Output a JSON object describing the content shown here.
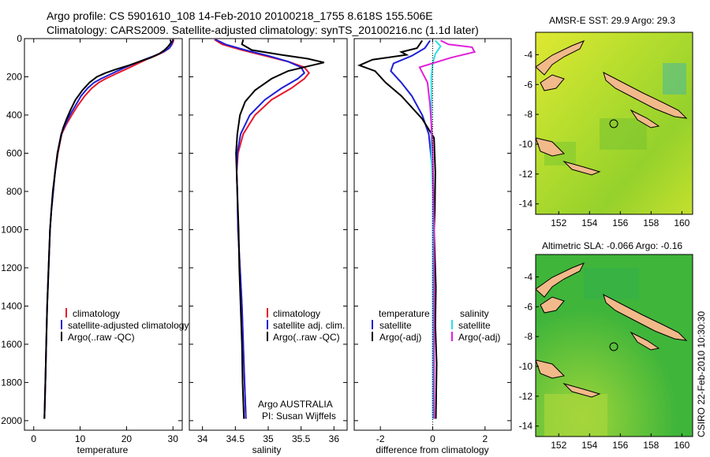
{
  "header": {
    "title_line1": "Argo profile: CS 5901610_108 14-Feb-2010 20100218_1755 8.618S 155.506E",
    "title_line2": "Climatology: CARS2009. Satellite-adjusted climatology: synTS_20100216.nc (1.1d later)"
  },
  "side_label": "CSIRO 22-Feb-2010 10:30:30",
  "colors": {
    "climatology": "#e8192c",
    "satellite": "#1f1fd6",
    "argo": "#000000",
    "sal_satellite": "#29e0e6",
    "sal_argo": "#e020d8"
  },
  "chart_data": [
    {
      "id": "temperature",
      "type": "line",
      "xlabel": "temperature",
      "ylabel": "",
      "xlim": [
        -2,
        32
      ],
      "ylim": [
        2050,
        0
      ],
      "xticks": [
        0,
        10,
        20,
        30
      ],
      "yticks": [
        0,
        200,
        400,
        600,
        800,
        1000,
        1200,
        1400,
        1600,
        1800,
        2000
      ],
      "legend": [
        "climatology",
        "satellite-adjusted climatology",
        "Argo(..raw -QC)"
      ],
      "series": [
        {
          "name": "climatology",
          "color": "#e8192c",
          "points": [
            [
              30.2,
              5
            ],
            [
              29.8,
              30
            ],
            [
              29.2,
              50
            ],
            [
              28.0,
              70
            ],
            [
              26.2,
              90
            ],
            [
              24.2,
              110
            ],
            [
              22.5,
              130
            ],
            [
              20.8,
              150
            ],
            [
              19.0,
              170
            ],
            [
              17.2,
              190
            ],
            [
              15.5,
              210
            ],
            [
              14.0,
              230
            ],
            [
              12.5,
              260
            ],
            [
              11.0,
              300
            ],
            [
              9.5,
              350
            ],
            [
              8.2,
              400
            ],
            [
              7.0,
              450
            ],
            [
              6.0,
              500
            ],
            [
              5.2,
              600
            ],
            [
              4.6,
              700
            ],
            [
              4.2,
              800
            ],
            [
              3.8,
              900
            ],
            [
              3.5,
              1000
            ],
            [
              3.2,
              1200
            ],
            [
              2.9,
              1400
            ],
            [
              2.7,
              1600
            ],
            [
              2.5,
              1800
            ],
            [
              2.3,
              1990
            ]
          ]
        },
        {
          "name": "satellite-adjusted climatology",
          "color": "#1f1fd6",
          "points": [
            [
              30.0,
              5
            ],
            [
              29.7,
              30
            ],
            [
              29.2,
              50
            ],
            [
              27.8,
              70
            ],
            [
              26.0,
              90
            ],
            [
              23.8,
              110
            ],
            [
              21.8,
              130
            ],
            [
              19.8,
              150
            ],
            [
              18.0,
              170
            ],
            [
              16.2,
              190
            ],
            [
              14.5,
              210
            ],
            [
              13.0,
              230
            ],
            [
              11.6,
              260
            ],
            [
              10.2,
              300
            ],
            [
              9.0,
              350
            ],
            [
              7.8,
              400
            ],
            [
              6.8,
              450
            ],
            [
              5.9,
              500
            ],
            [
              5.1,
              600
            ],
            [
              4.6,
              700
            ],
            [
              4.2,
              800
            ],
            [
              3.8,
              900
            ],
            [
              3.5,
              1000
            ],
            [
              3.2,
              1200
            ],
            [
              2.9,
              1400
            ],
            [
              2.7,
              1600
            ],
            [
              2.5,
              1800
            ],
            [
              2.3,
              1990
            ]
          ]
        },
        {
          "name": "Argo(..raw -QC)",
          "color": "#000000",
          "points": [
            [
              29.4,
              5
            ],
            [
              29.6,
              20
            ],
            [
              29.0,
              40
            ],
            [
              28.2,
              60
            ],
            [
              27.0,
              80
            ],
            [
              25.2,
              100
            ],
            [
              22.8,
              120
            ],
            [
              20.5,
              140
            ],
            [
              17.8,
              160
            ],
            [
              15.5,
              180
            ],
            [
              13.6,
              200
            ],
            [
              12.0,
              230
            ],
            [
              10.5,
              270
            ],
            [
              9.0,
              320
            ],
            [
              8.0,
              370
            ],
            [
              7.1,
              420
            ],
            [
              6.3,
              470
            ],
            [
              5.8,
              520
            ],
            [
              5.1,
              600
            ],
            [
              4.6,
              700
            ],
            [
              4.1,
              800
            ],
            [
              3.8,
              900
            ],
            [
              3.5,
              1000
            ],
            [
              3.2,
              1200
            ],
            [
              2.9,
              1400
            ],
            [
              2.7,
              1600
            ],
            [
              2.5,
              1800
            ],
            [
              2.3,
              1990
            ]
          ]
        }
      ]
    },
    {
      "id": "salinity",
      "type": "line",
      "xlabel": "salinity",
      "ylabel": "",
      "xlim": [
        33.8,
        36.2
      ],
      "ylim": [
        2050,
        0
      ],
      "xticks": [
        34,
        34.5,
        35,
        35.5,
        36
      ],
      "yticks": [
        0,
        200,
        400,
        600,
        800,
        1000,
        1200,
        1400,
        1600,
        1800,
        2000
      ],
      "legend": [
        "climatology",
        "satellite adj. clim.",
        "Argo(..raw -QC)"
      ],
      "annotation_line1": "Argo AUSTRALIA",
      "annotation_line2": "PI: Susan Wijffels",
      "series": [
        {
          "name": "climatology",
          "color": "#e8192c",
          "points": [
            [
              34.18,
              5
            ],
            [
              34.3,
              30
            ],
            [
              34.6,
              60
            ],
            [
              34.95,
              90
            ],
            [
              35.3,
              120
            ],
            [
              35.55,
              150
            ],
            [
              35.62,
              180
            ],
            [
              35.55,
              210
            ],
            [
              35.35,
              260
            ],
            [
              35.05,
              320
            ],
            [
              34.8,
              400
            ],
            [
              34.62,
              500
            ],
            [
              34.54,
              600
            ],
            [
              34.52,
              700
            ],
            [
              34.53,
              800
            ],
            [
              34.54,
              1000
            ],
            [
              34.57,
              1200
            ],
            [
              34.6,
              1400
            ],
            [
              34.62,
              1600
            ],
            [
              34.64,
              1800
            ],
            [
              34.66,
              1990
            ]
          ]
        },
        {
          "name": "satellite adj. clim.",
          "color": "#1f1fd6",
          "points": [
            [
              34.2,
              5
            ],
            [
              34.35,
              30
            ],
            [
              34.65,
              60
            ],
            [
              35.0,
              90
            ],
            [
              35.3,
              120
            ],
            [
              35.5,
              150
            ],
            [
              35.55,
              180
            ],
            [
              35.45,
              210
            ],
            [
              35.2,
              260
            ],
            [
              34.95,
              320
            ],
            [
              34.72,
              400
            ],
            [
              34.58,
              500
            ],
            [
              34.53,
              600
            ],
            [
              34.52,
              700
            ],
            [
              34.53,
              800
            ],
            [
              34.54,
              1000
            ],
            [
              34.57,
              1200
            ],
            [
              34.6,
              1400
            ],
            [
              34.62,
              1600
            ],
            [
              34.64,
              1800
            ],
            [
              34.66,
              1990
            ]
          ]
        },
        {
          "name": "Argo(..raw -QC)",
          "color": "#000000",
          "points": [
            [
              34.62,
              5
            ],
            [
              34.6,
              30
            ],
            [
              34.75,
              60
            ],
            [
              35.2,
              85
            ],
            [
              35.6,
              105
            ],
            [
              35.85,
              125
            ],
            [
              35.6,
              145
            ],
            [
              35.3,
              170
            ],
            [
              35.05,
              210
            ],
            [
              34.8,
              270
            ],
            [
              34.65,
              330
            ],
            [
              34.57,
              400
            ],
            [
              34.53,
              500
            ],
            [
              34.51,
              600
            ],
            [
              34.52,
              700
            ],
            [
              34.53,
              800
            ],
            [
              34.55,
              1000
            ],
            [
              34.56,
              1200
            ],
            [
              34.58,
              1400
            ],
            [
              34.6,
              1600
            ],
            [
              34.61,
              1800
            ],
            [
              34.63,
              1990
            ]
          ]
        }
      ]
    },
    {
      "id": "difference",
      "type": "line",
      "xlabel": "difference from climatology",
      "ylabel": "",
      "xlim": [
        -3,
        3
      ],
      "ylim": [
        2050,
        0
      ],
      "xticks": [
        -2,
        0,
        2
      ],
      "yticks": [
        0,
        200,
        400,
        600,
        800,
        1000,
        1200,
        1400,
        1600,
        1800,
        2000
      ],
      "legend_headers": [
        "temperature",
        "salinity"
      ],
      "legend": [
        "satellite",
        "Argo(-adj)",
        "satellite",
        "Argo(-adj)"
      ],
      "series": [
        {
          "name": "satellite",
          "color": "#1f1fd6",
          "points": [
            [
              -0.1,
              10
            ],
            [
              -0.3,
              50
            ],
            [
              -0.8,
              90
            ],
            [
              -1.5,
              130
            ],
            [
              -1.6,
              170
            ],
            [
              -1.2,
              230
            ],
            [
              -0.8,
              300
            ],
            [
              -0.4,
              400
            ],
            [
              -0.15,
              500
            ],
            [
              0,
              700
            ],
            [
              0,
              1000
            ],
            [
              0,
              1500
            ],
            [
              0,
              1990
            ]
          ]
        },
        {
          "name": "Argo(-adj)",
          "color": "#000000",
          "points": [
            [
              -0.4,
              10
            ],
            [
              -0.5,
              30
            ],
            [
              -0.6,
              50
            ],
            [
              -1.2,
              70
            ],
            [
              -1.0,
              85
            ],
            [
              -2.3,
              110
            ],
            [
              -2.8,
              140
            ],
            [
              -2.2,
              170
            ],
            [
              -1.8,
              230
            ],
            [
              -1.2,
              300
            ],
            [
              -0.8,
              360
            ],
            [
              -0.4,
              420
            ],
            [
              0.05,
              520
            ],
            [
              0.1,
              700
            ],
            [
              0.08,
              900
            ],
            [
              0.05,
              1000
            ],
            [
              0.12,
              1300
            ],
            [
              0.1,
              1500
            ],
            [
              0.15,
              1700
            ],
            [
              0.12,
              1990
            ]
          ]
        },
        {
          "name": "satellite",
          "color": "#29e0e6",
          "points": [
            [
              0.1,
              10
            ],
            [
              0.3,
              40
            ],
            [
              0.1,
              80
            ],
            [
              0.0,
              130
            ],
            [
              -0.05,
              200
            ],
            [
              -0.05,
              400
            ],
            [
              -0.05,
              600
            ],
            [
              0,
              800
            ],
            [
              0,
              1200
            ],
            [
              0,
              1990
            ]
          ]
        },
        {
          "name": "Argo(-adj)",
          "color": "#e020d8",
          "points": [
            [
              0.3,
              10
            ],
            [
              0.6,
              30
            ],
            [
              1.5,
              45
            ],
            [
              1.6,
              70
            ],
            [
              0.7,
              100
            ],
            [
              -0.5,
              150
            ],
            [
              -0.2,
              230
            ],
            [
              -0.1,
              350
            ],
            [
              -0.05,
              450
            ],
            [
              0,
              600
            ],
            [
              0.05,
              1000
            ],
            [
              0.05,
              1500
            ],
            [
              0.05,
              1990
            ]
          ]
        }
      ]
    },
    {
      "id": "sst-map",
      "type": "heatmap",
      "title": "AMSR-E SST: 29.9 Argo: 29.3",
      "xlim": [
        150.5,
        160.7
      ],
      "ylim": [
        -14.7,
        -2.5
      ],
      "xticks": [
        152,
        154,
        156,
        158,
        160
      ],
      "yticks": [
        -4,
        -6,
        -8,
        -10,
        -12,
        -14
      ],
      "marker": [
        155.506,
        -8.618
      ]
    },
    {
      "id": "sla-map",
      "type": "heatmap",
      "title": "Altimetric SLA: -0.066 Argo: -0.16",
      "xlim": [
        150.5,
        160.7
      ],
      "ylim": [
        -14.7,
        -2.5
      ],
      "xticks": [
        152,
        154,
        156,
        158,
        160
      ],
      "yticks": [
        -4,
        -6,
        -8,
        -10,
        -12,
        -14
      ],
      "marker": [
        155.506,
        -8.618
      ]
    }
  ]
}
